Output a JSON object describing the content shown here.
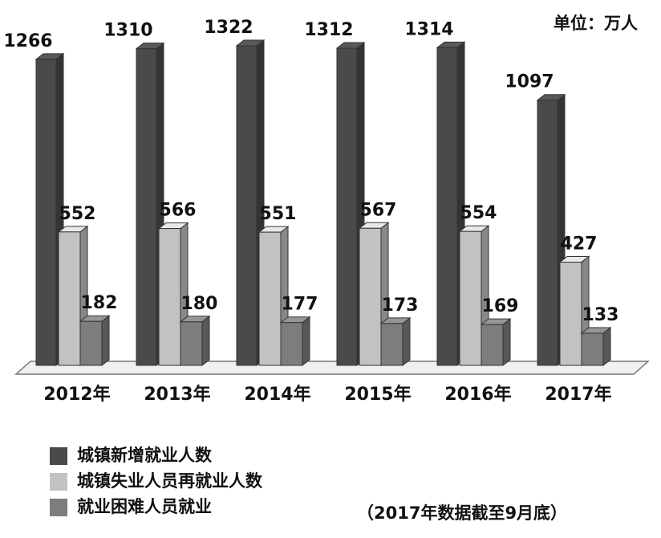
{
  "chart_data": {
    "type": "bar3d",
    "unit": "单位：万人",
    "note": "（2017年数据截至9月底）",
    "categories": [
      "2012年",
      "2013年",
      "2014年",
      "2015年",
      "2016年",
      "2017年"
    ],
    "series": [
      {
        "name": "城镇新增就业人数",
        "color": "#4a4a4a",
        "values": [
          1266,
          1310,
          1322,
          1312,
          1314,
          1097
        ]
      },
      {
        "name": "城镇失业人员再就业人数",
        "color": "#c2c2c2",
        "values": [
          552,
          566,
          551,
          567,
          554,
          427
        ]
      },
      {
        "name": "就业困难人员就业",
        "color": "#7d7d7d",
        "values": [
          182,
          180,
          177,
          173,
          169,
          133
        ]
      }
    ]
  }
}
